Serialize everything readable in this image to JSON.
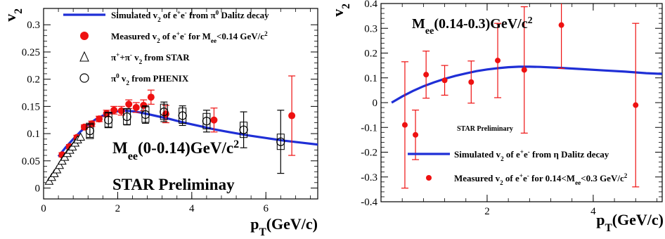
{
  "chart_data": [
    {
      "type": "scatter",
      "title": "",
      "ylabel_main": "v",
      "ylabel_sub": "2",
      "xlabel_main": "p",
      "xlabel_sub": "T",
      "xlabel_tail": "(GeV/c)",
      "xlim": [
        0,
        7.4
      ],
      "ylim": [
        -0.02,
        0.33
      ],
      "xticks": [
        0,
        2,
        4,
        6
      ],
      "yticks": [
        0,
        0.05,
        0.1,
        0.15,
        0.2,
        0.25,
        0.3
      ],
      "grid": false,
      "legend_position": "top-right",
      "annotations": {
        "mass_prefix": "M",
        "mass_sub": "ee",
        "mass_tail": "(0-0.14)GeV/c",
        "mass_sup": "2",
        "preliminary": "STAR Preliminay"
      },
      "legend": [
        {
          "key": "curve",
          "parts": [
            [
              "Simulated v",
              ""
            ],
            [
              "2",
              "sub"
            ],
            [
              " of e",
              ""
            ],
            [
              "+",
              "sup"
            ],
            [
              "e",
              ""
            ],
            [
              "-",
              "sup"
            ],
            [
              " from π",
              ""
            ],
            [
              "0",
              "sup"
            ],
            [
              " Dalitz decay",
              ""
            ]
          ]
        },
        {
          "key": "measured",
          "parts": [
            [
              "Measured v",
              ""
            ],
            [
              "2",
              "sub"
            ],
            [
              " of e",
              ""
            ],
            [
              "+",
              "sup"
            ],
            [
              "e",
              ""
            ],
            [
              "-",
              "sup"
            ],
            [
              " for M",
              ""
            ],
            [
              "ee",
              "sub"
            ],
            [
              "<0.14 GeV/c",
              ""
            ],
            [
              "2",
              "sup"
            ]
          ]
        },
        {
          "key": "star",
          "parts": [
            [
              "π",
              ""
            ],
            [
              "+",
              "sup"
            ],
            [
              "+π",
              ""
            ],
            [
              "-",
              "sup"
            ],
            [
              " v",
              ""
            ],
            [
              "2",
              "sub"
            ],
            [
              " from STAR",
              ""
            ]
          ]
        },
        {
          "key": "phenix",
          "parts": [
            [
              "π",
              ""
            ],
            [
              "0",
              "sup"
            ],
            [
              " v",
              ""
            ],
            [
              "2",
              "sub"
            ],
            [
              " from PHENIX",
              ""
            ]
          ]
        }
      ],
      "series": [
        {
          "key": "curve",
          "name": "Simulated v2 of e+e- from π0 Dalitz decay",
          "style": "line",
          "color": "#1f2fd6",
          "x": [
            0.4,
            0.6,
            0.8,
            1.0,
            1.2,
            1.4,
            1.6,
            1.8,
            2.0,
            2.2,
            2.4,
            2.6,
            2.8,
            3.0,
            3.4,
            3.8,
            4.2,
            4.6,
            5.0,
            5.5,
            6.0,
            6.5,
            7.0,
            7.4
          ],
          "y": [
            0.058,
            0.075,
            0.09,
            0.104,
            0.116,
            0.126,
            0.133,
            0.138,
            0.141,
            0.142,
            0.141,
            0.139,
            0.136,
            0.133,
            0.127,
            0.12,
            0.114,
            0.108,
            0.103,
            0.097,
            0.092,
            0.087,
            0.083,
            0.08
          ]
        },
        {
          "key": "measured",
          "name": "Measured v2 of e+e- for Mee<0.14 GeV/c2",
          "style": "dot",
          "color": "#ee1111",
          "x": [
            0.5,
            0.7,
            0.9,
            1.1,
            1.3,
            1.5,
            1.7,
            1.9,
            2.1,
            2.3,
            2.5,
            2.7,
            2.9,
            3.3,
            4.6,
            6.7
          ],
          "y": [
            0.061,
            0.076,
            0.093,
            0.112,
            0.118,
            0.127,
            0.137,
            0.143,
            0.142,
            0.154,
            0.148,
            0.152,
            0.167,
            0.136,
            0.125,
            0.133
          ],
          "yerr": [
            0.004,
            0.004,
            0.004,
            0.004,
            0.005,
            0.005,
            0.006,
            0.007,
            0.008,
            0.008,
            0.009,
            0.01,
            0.013,
            0.016,
            0.022,
            0.073
          ]
        },
        {
          "key": "star",
          "name": "π++π- v2 from STAR",
          "style": "triangle",
          "color": "#000000",
          "x": [
            0.15,
            0.22,
            0.29,
            0.36,
            0.43,
            0.5,
            0.57,
            0.64,
            0.71,
            0.78,
            0.85,
            0.92,
            1.0
          ],
          "y": [
            0.012,
            0.019,
            0.026,
            0.033,
            0.041,
            0.049,
            0.056,
            0.063,
            0.069,
            0.075,
            0.082,
            0.088,
            0.093
          ]
        },
        {
          "key": "phenix",
          "name": "π0 v2 from PHENIX",
          "style": "circle",
          "color": "#000000",
          "x": [
            1.25,
            1.75,
            2.25,
            2.75,
            3.25,
            3.75,
            4.4,
            5.4,
            6.4
          ],
          "y": [
            0.105,
            0.125,
            0.131,
            0.135,
            0.14,
            0.133,
            0.123,
            0.107,
            0.085
          ],
          "yerr": [
            0.012,
            0.013,
            0.015,
            0.016,
            0.018,
            0.018,
            0.02,
            0.033,
            0.058
          ]
        }
      ]
    },
    {
      "type": "scatter",
      "title": "",
      "ylabel_main": "v",
      "ylabel_sub": "2",
      "xlabel_main": "p",
      "xlabel_sub": "T",
      "xlabel_tail": "(GeV/c)",
      "xlim": [
        0,
        5.3
      ],
      "ylim": [
        -0.4,
        0.4
      ],
      "xticks": [
        2,
        4
      ],
      "yticks": [
        -0.4,
        -0.3,
        -0.2,
        -0.1,
        0,
        0.1,
        0.2,
        0.3,
        0.4
      ],
      "grid": false,
      "legend_position": "bottom-right",
      "annotations": {
        "mass_prefix": "M",
        "mass_sub": "ee",
        "mass_tail": "(0.14-0.3)GeV/c",
        "mass_sup": "2",
        "preliminary": "STAR Preliminary"
      },
      "legend": [
        {
          "key": "curve",
          "parts": [
            [
              "Simulated v",
              ""
            ],
            [
              "2",
              "sub"
            ],
            [
              " of e",
              ""
            ],
            [
              "+",
              "sup"
            ],
            [
              "e",
              ""
            ],
            [
              "-",
              "sup"
            ],
            [
              " from η Dalitz decay",
              ""
            ]
          ]
        },
        {
          "key": "measured",
          "parts": [
            [
              "Measured v",
              ""
            ],
            [
              "2",
              "sub"
            ],
            [
              " of e",
              ""
            ],
            [
              "+",
              "sup"
            ],
            [
              "e",
              ""
            ],
            [
              "-",
              "sup"
            ],
            [
              " for 0.14<M",
              ""
            ],
            [
              "ee",
              "sub"
            ],
            [
              "<0.3 GeV/c",
              ""
            ],
            [
              "2",
              "sup"
            ]
          ]
        }
      ],
      "series": [
        {
          "key": "curve",
          "name": "Simulated v2 of e+e- from η Dalitz decay",
          "style": "line",
          "color": "#1f2fd6",
          "x": [
            0.2,
            0.4,
            0.6,
            0.8,
            1.0,
            1.2,
            1.4,
            1.6,
            1.8,
            2.0,
            2.2,
            2.4,
            2.6,
            2.8,
            3.0,
            3.4,
            3.8,
            4.2,
            4.6,
            5.0,
            5.3
          ],
          "y": [
            0.0,
            0.025,
            0.047,
            0.066,
            0.082,
            0.096,
            0.108,
            0.118,
            0.127,
            0.134,
            0.139,
            0.143,
            0.145,
            0.145,
            0.144,
            0.14,
            0.135,
            0.13,
            0.125,
            0.119,
            0.116
          ]
        },
        {
          "key": "measured",
          "name": "Measured v2 of e+e- for 0.14<Mee<0.3 GeV/c2",
          "style": "dot",
          "color": "#ee1111",
          "x": [
            0.45,
            0.65,
            0.85,
            1.2,
            1.7,
            2.2,
            2.7,
            3.4,
            4.8
          ],
          "y": [
            -0.09,
            -0.13,
            0.113,
            0.09,
            0.083,
            0.17,
            0.132,
            0.313,
            -0.01
          ],
          "yerr": [
            0.255,
            0.1,
            0.095,
            0.06,
            0.085,
            0.15,
            0.255,
            0.175,
            0.33
          ]
        }
      ]
    }
  ]
}
